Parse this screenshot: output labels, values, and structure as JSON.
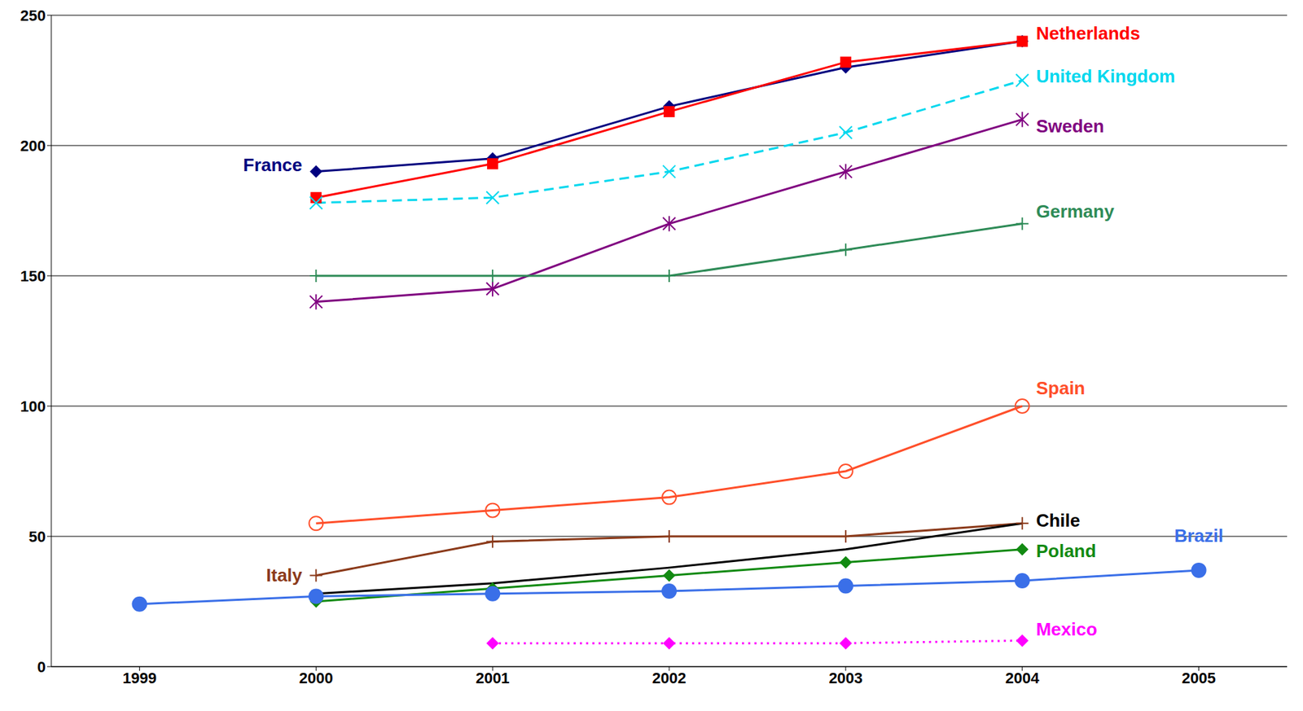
{
  "chart_data": {
    "type": "line",
    "x": [
      1999,
      2000,
      2001,
      2002,
      2003,
      2004,
      2005
    ],
    "xlim": [
      1998.5,
      2005.5
    ],
    "xticks": [
      1999,
      2000,
      2001,
      2002,
      2003,
      2004,
      2005
    ],
    "ylim": [
      0,
      250
    ],
    "yticks": [
      0,
      50,
      100,
      150,
      200,
      250
    ],
    "grid": true,
    "series": [
      {
        "name": "France",
        "color": "#00007f",
        "marker": "diamond",
        "line_style": "solid",
        "values": [
          null,
          190,
          195,
          215,
          230,
          240,
          null
        ]
      },
      {
        "name": "Netherlands",
        "color": "#ff0000",
        "marker": "square",
        "line_style": "solid",
        "values": [
          null,
          180,
          193,
          213,
          232,
          240,
          null
        ]
      },
      {
        "name": "United Kingdom",
        "color": "#00d8ee",
        "marker": "x",
        "line_style": "dashed",
        "values": [
          null,
          178,
          180,
          190,
          205,
          225,
          null
        ]
      },
      {
        "name": "Sweden",
        "color": "#800080",
        "marker": "star",
        "line_style": "solid",
        "values": [
          null,
          140,
          145,
          170,
          190,
          210,
          null
        ]
      },
      {
        "name": "Germany",
        "color": "#2e8b57",
        "marker": "plus",
        "line_style": "solid",
        "values": [
          null,
          150,
          150,
          150,
          160,
          170,
          null
        ]
      },
      {
        "name": "Spain",
        "color": "#ff4f2a",
        "marker": "circle_open",
        "line_style": "solid",
        "values": [
          null,
          55,
          60,
          65,
          75,
          100,
          null
        ]
      },
      {
        "name": "Italy",
        "color": "#8b3a1a",
        "marker": "plus",
        "line_style": "solid",
        "values": [
          null,
          35,
          48,
          50,
          50,
          55,
          null
        ]
      },
      {
        "name": "Chile",
        "color": "#000000",
        "marker": "none",
        "line_style": "solid",
        "values": [
          null,
          28,
          32,
          38,
          45,
          55,
          null
        ]
      },
      {
        "name": "Poland",
        "color": "#128a12",
        "marker": "diamond",
        "line_style": "solid",
        "values": [
          null,
          25,
          30,
          35,
          40,
          45,
          null
        ]
      },
      {
        "name": "Brazil",
        "color": "#3a6fe8",
        "marker": "circle",
        "line_style": "solid",
        "values": [
          24,
          27,
          28,
          29,
          31,
          33,
          37
        ]
      },
      {
        "name": "Mexico",
        "color": "#ff00ff",
        "marker": "diamond",
        "line_style": "dotted",
        "values": [
          null,
          null,
          9,
          9,
          9,
          10,
          null
        ]
      }
    ]
  }
}
